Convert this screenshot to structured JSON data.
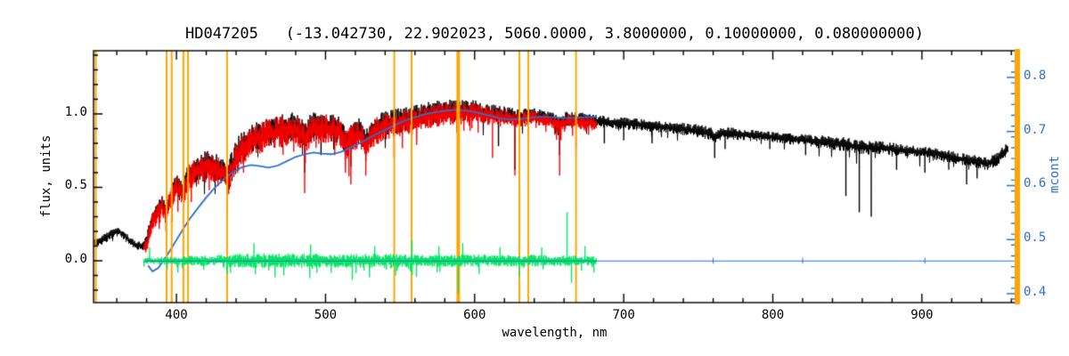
{
  "page": {
    "background": "#ffffff"
  },
  "chart_data": {
    "type": "line",
    "title": "HD047205   (-13.042730, 22.902023, 5060.0000, 3.8000000, 0.10000000, 0.080000000)",
    "xlabel": "wavelength, nm",
    "ylabel_left": "flux, units",
    "ylabel_right": "mcont",
    "x_range": [
      344.4,
      962.8
    ],
    "y_left_range": [
      -0.285,
      1.43
    ],
    "y_right_range": [
      0.3835,
      0.8494
    ],
    "x_ticks": [
      400,
      500,
      600,
      700,
      800,
      900
    ],
    "x_minor_step": 20,
    "y_left_ticks": [
      0.0,
      0.5,
      1.0
    ],
    "y_left_tick_labels": [
      "0.0",
      "0.5",
      "1.0"
    ],
    "y_left_minor_step": 0.1,
    "y_right_ticks": [
      0.4,
      0.5,
      0.6,
      0.7,
      0.8
    ],
    "y_right_tick_labels": [
      "0.4",
      "0.5",
      "0.6",
      "0.7",
      "0.8"
    ],
    "y_right_minor_step": 0.02,
    "grid": false,
    "legend": "none",
    "colors": {
      "background": "#ffffff",
      "axis": "#000000",
      "observed": "#000000",
      "fitted": "#f40000",
      "continuum": "#2a70d0",
      "residual": "#00e860",
      "markers": "#ffa500",
      "right_axis": "#2a70d0"
    },
    "right_edge_band": {
      "color": "#ffa500",
      "width": 6
    },
    "series": [
      {
        "name": "observed-spectrum",
        "style": "noisy",
        "axis": "left",
        "color": "#000000",
        "seed": 11,
        "range": [
          345,
          958
        ],
        "line_width": 1,
        "anchors": [
          [
            345,
            0.12
          ],
          [
            352,
            0.15
          ],
          [
            357,
            0.19
          ],
          [
            361,
            0.2
          ],
          [
            365,
            0.17
          ],
          [
            369,
            0.13
          ],
          [
            373,
            0.11
          ],
          [
            377,
            0.09
          ],
          [
            380,
            0.14
          ],
          [
            383,
            0.27
          ],
          [
            387,
            0.33
          ],
          [
            390,
            0.39
          ],
          [
            393,
            0.33
          ],
          [
            396,
            0.44
          ],
          [
            400,
            0.51
          ],
          [
            404,
            0.47
          ],
          [
            408,
            0.57
          ],
          [
            412,
            0.62
          ],
          [
            417,
            0.645
          ],
          [
            422,
            0.66
          ],
          [
            427,
            0.63
          ],
          [
            431,
            0.61
          ],
          [
            434,
            0.55
          ],
          [
            438,
            0.67
          ],
          [
            442,
            0.75
          ],
          [
            447,
            0.8
          ],
          [
            452,
            0.84
          ],
          [
            457,
            0.86
          ],
          [
            462,
            0.88
          ],
          [
            468,
            0.895
          ],
          [
            474,
            0.905
          ],
          [
            480,
            0.915
          ],
          [
            486,
            0.85
          ],
          [
            491,
            0.91
          ],
          [
            497,
            0.92
          ],
          [
            503,
            0.915
          ],
          [
            509,
            0.895
          ],
          [
            514,
            0.81
          ],
          [
            518,
            0.85
          ],
          [
            523,
            0.88
          ],
          [
            527,
            0.81
          ],
          [
            532,
            0.89
          ],
          [
            538,
            0.925
          ],
          [
            544,
            0.945
          ],
          [
            550,
            0.955
          ],
          [
            556,
            0.965
          ],
          [
            562,
            0.98
          ],
          [
            568,
            1.0
          ],
          [
            574,
            1.01
          ],
          [
            580,
            1.025
          ],
          [
            586,
            1.02
          ],
          [
            592,
            1.025
          ],
          [
            598,
            1.03
          ],
          [
            604,
            1.015
          ],
          [
            610,
            1.005
          ],
          [
            616,
            1.0
          ],
          [
            622,
            0.995
          ],
          [
            628,
            0.98
          ],
          [
            634,
            0.985
          ],
          [
            640,
            0.99
          ],
          [
            646,
            0.98
          ],
          [
            652,
            0.97
          ],
          [
            657,
            0.94
          ],
          [
            662,
            0.97
          ],
          [
            668,
            0.965
          ],
          [
            674,
            0.96
          ],
          [
            680,
            0.95
          ],
          [
            690,
            0.945
          ],
          [
            700,
            0.935
          ],
          [
            712,
            0.925
          ],
          [
            724,
            0.912
          ],
          [
            736,
            0.9
          ],
          [
            748,
            0.89
          ],
          [
            758,
            0.865
          ],
          [
            762,
            0.845
          ],
          [
            766,
            0.87
          ],
          [
            776,
            0.862
          ],
          [
            788,
            0.852
          ],
          [
            800,
            0.842
          ],
          [
            812,
            0.83
          ],
          [
            824,
            0.818
          ],
          [
            836,
            0.805
          ],
          [
            848,
            0.792
          ],
          [
            856,
            0.775
          ],
          [
            864,
            0.77
          ],
          [
            872,
            0.768
          ],
          [
            880,
            0.76
          ],
          [
            888,
            0.752
          ],
          [
            896,
            0.744
          ],
          [
            904,
            0.736
          ],
          [
            912,
            0.724
          ],
          [
            920,
            0.708
          ],
          [
            928,
            0.69
          ],
          [
            936,
            0.675
          ],
          [
            944,
            0.66
          ],
          [
            950,
            0.69
          ],
          [
            955,
            0.74
          ],
          [
            958,
            0.77
          ]
        ],
        "noise_anchors": [
          [
            345,
            0.035
          ],
          [
            375,
            0.03
          ],
          [
            385,
            0.05
          ],
          [
            400,
            0.08
          ],
          [
            420,
            0.1
          ],
          [
            440,
            0.11
          ],
          [
            470,
            0.1
          ],
          [
            500,
            0.1
          ],
          [
            530,
            0.09
          ],
          [
            560,
            0.085
          ],
          [
            590,
            0.075
          ],
          [
            620,
            0.055
          ],
          [
            650,
            0.05
          ],
          [
            680,
            0.045
          ],
          [
            720,
            0.04
          ],
          [
            760,
            0.045
          ],
          [
            800,
            0.035
          ],
          [
            850,
            0.05
          ],
          [
            900,
            0.04
          ],
          [
            958,
            0.045
          ]
        ],
        "dips": [
          [
            486,
            0.6
          ],
          [
            497,
            0.72
          ],
          [
            517,
            0.64
          ],
          [
            527,
            0.68
          ],
          [
            589,
            0.38
          ],
          [
            616,
            0.78
          ],
          [
            627,
            0.62
          ],
          [
            657,
            0.72
          ],
          [
            687,
            0.8
          ],
          [
            700,
            0.82
          ],
          [
            719,
            0.8
          ],
          [
            761,
            0.7
          ],
          [
            768,
            0.76
          ],
          [
            798,
            0.76
          ],
          [
            822,
            0.72
          ],
          [
            849,
            0.44
          ],
          [
            858,
            0.33
          ],
          [
            866,
            0.3
          ],
          [
            883,
            0.62
          ],
          [
            902,
            0.6
          ],
          [
            918,
            0.62
          ],
          [
            930,
            0.52
          ],
          [
            937,
            0.56
          ]
        ]
      },
      {
        "name": "fitted-spectrum",
        "style": "noisy",
        "axis": "left",
        "color": "#f40000",
        "seed": 23,
        "range": [
          378,
          682
        ],
        "line_width": 1,
        "bias": -0.02,
        "anchors_ref": "observed-spectrum",
        "noise_anchors": [
          [
            378,
            0.05
          ],
          [
            400,
            0.085
          ],
          [
            430,
            0.11
          ],
          [
            460,
            0.105
          ],
          [
            500,
            0.1
          ],
          [
            530,
            0.095
          ],
          [
            560,
            0.085
          ],
          [
            590,
            0.075
          ],
          [
            620,
            0.055
          ],
          [
            650,
            0.05
          ],
          [
            682,
            0.045
          ]
        ],
        "dips": [
          [
            383,
            0.18
          ],
          [
            389,
            0.26
          ],
          [
            393,
            0.2
          ],
          [
            397,
            0.26
          ],
          [
            410,
            0.4
          ],
          [
            422,
            0.48
          ],
          [
            434,
            0.32
          ],
          [
            445,
            0.6
          ],
          [
            486,
            0.46
          ],
          [
            517,
            0.52
          ],
          [
            527,
            0.58
          ],
          [
            546,
            0.7
          ],
          [
            589,
            0.34
          ],
          [
            612,
            0.7
          ],
          [
            627,
            0.58
          ],
          [
            657,
            0.58
          ],
          [
            668,
            0.76
          ]
        ]
      },
      {
        "name": "continuum-mcont",
        "style": "line",
        "axis": "right",
        "color": "#2a70d0",
        "line_width": 1.8,
        "anchors": [
          [
            381,
            0.452
          ],
          [
            384,
            0.441
          ],
          [
            388,
            0.448
          ],
          [
            393,
            0.468
          ],
          [
            398,
            0.49
          ],
          [
            403,
            0.513
          ],
          [
            408,
            0.535
          ],
          [
            414,
            0.557
          ],
          [
            420,
            0.578
          ],
          [
            426,
            0.597
          ],
          [
            432,
            0.612
          ],
          [
            438,
            0.625
          ],
          [
            444,
            0.634
          ],
          [
            450,
            0.638
          ],
          [
            456,
            0.636
          ],
          [
            462,
            0.633
          ],
          [
            468,
            0.637
          ],
          [
            474,
            0.645
          ],
          [
            480,
            0.653
          ],
          [
            486,
            0.658
          ],
          [
            492,
            0.661
          ],
          [
            498,
            0.659
          ],
          [
            504,
            0.658
          ],
          [
            510,
            0.662
          ],
          [
            516,
            0.669
          ],
          [
            522,
            0.677
          ],
          [
            528,
            0.686
          ],
          [
            534,
            0.695
          ],
          [
            540,
            0.703
          ],
          [
            546,
            0.711
          ],
          [
            552,
            0.719
          ],
          [
            558,
            0.725
          ],
          [
            564,
            0.73
          ],
          [
            570,
            0.734
          ],
          [
            576,
            0.737
          ],
          [
            582,
            0.739
          ],
          [
            588,
            0.74
          ],
          [
            594,
            0.739
          ],
          [
            600,
            0.736
          ],
          [
            606,
            0.732
          ],
          [
            612,
            0.728
          ],
          [
            618,
            0.724
          ],
          [
            624,
            0.722
          ],
          [
            630,
            0.723
          ],
          [
            636,
            0.725
          ],
          [
            642,
            0.727
          ],
          [
            648,
            0.727
          ],
          [
            654,
            0.726
          ],
          [
            660,
            0.725
          ],
          [
            666,
            0.725
          ],
          [
            672,
            0.726
          ],
          [
            678,
            0.727
          ],
          [
            682,
            0.727
          ]
        ]
      },
      {
        "name": "sky-line-markers",
        "style": "vlines",
        "color": "#ffa500",
        "line_width": 2,
        "positions": [
          345.9,
          393.4,
          396.8,
          404.7,
          407.8,
          434.0,
          546.1,
          557.7,
          630.0,
          636.0,
          668.0
        ],
        "thick_positions": [
          589.0
        ],
        "thick_width": 4
      },
      {
        "name": "fit-residual",
        "style": "noisy",
        "axis": "left",
        "color": "#00e860",
        "seed": 37,
        "range": [
          378,
          682
        ],
        "line_width": 1,
        "anchors": [
          [
            378,
            0
          ],
          [
            682,
            0
          ]
        ],
        "noise_anchors": [
          [
            378,
            0.018
          ],
          [
            395,
            0.03
          ],
          [
            420,
            0.035
          ],
          [
            450,
            0.05
          ],
          [
            480,
            0.05
          ],
          [
            510,
            0.045
          ],
          [
            540,
            0.05
          ],
          [
            565,
            0.04
          ],
          [
            590,
            0.045
          ],
          [
            615,
            0.04
          ],
          [
            645,
            0.04
          ],
          [
            682,
            0.03
          ]
        ],
        "dips": [
          [
            382,
            0.09
          ],
          [
            401,
            -0.08
          ],
          [
            434,
            -0.09
          ],
          [
            452,
            0.12
          ],
          [
            472,
            -0.1
          ],
          [
            490,
            0.11
          ],
          [
            518,
            -0.13
          ],
          [
            533,
            0.1
          ],
          [
            547,
            -0.1
          ],
          [
            558,
            0.14
          ],
          [
            561,
            -0.11
          ],
          [
            576,
            0.1
          ],
          [
            589,
            -0.22
          ],
          [
            592,
            0.12
          ],
          [
            603,
            -0.09
          ],
          [
            617,
            0.09
          ],
          [
            630,
            -0.11
          ],
          [
            645,
            0.09
          ],
          [
            662,
            0.33
          ],
          [
            665,
            -0.15
          ],
          [
            674,
            0.1
          ],
          [
            680,
            -0.08
          ]
        ]
      },
      {
        "name": "zero-line",
        "style": "line",
        "axis": "left",
        "color": "#2a70d0",
        "line_width": 1,
        "anchors": [
          [
            379,
            -0.002
          ],
          [
            962,
            -0.002
          ]
        ],
        "blips": [
          760,
          820,
          902
        ]
      }
    ]
  }
}
